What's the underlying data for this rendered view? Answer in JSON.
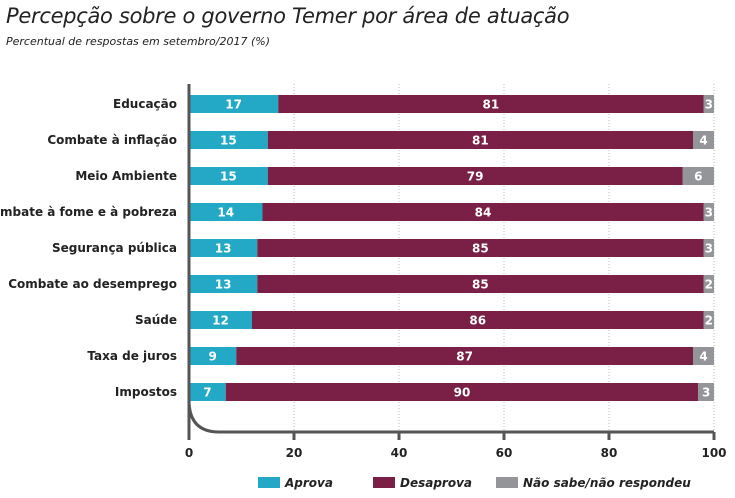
{
  "chart_data": {
    "type": "bar",
    "orientation": "horizontal",
    "stacked": true,
    "title": "Percepção sobre o governo Temer por área de atuação",
    "subtitle": "Percentual de respostas em setembro/2017 (%)",
    "categories": [
      "Educação",
      "Combate à inflação",
      "Meio Ambiente",
      "Combate à fome e à pobreza",
      "Segurança pública",
      "Combate ao desemprego",
      "Saúde",
      "Taxa de juros",
      "Impostos"
    ],
    "series": [
      {
        "name": "Aprova",
        "color": "#23a9c6",
        "values": [
          17,
          15,
          15,
          14,
          13,
          13,
          12,
          9,
          7
        ]
      },
      {
        "name": "Desaprova",
        "color": "#7a1f45",
        "values": [
          81,
          81,
          79,
          84,
          85,
          85,
          86,
          87,
          90
        ]
      },
      {
        "name": "Não sabe/não respondeu",
        "color": "#939598",
        "values": [
          3,
          4,
          6,
          3,
          3,
          2,
          2,
          4,
          3
        ]
      }
    ],
    "xlim": [
      0,
      100
    ],
    "xticks": [
      0,
      20,
      40,
      60,
      80,
      100
    ],
    "grid": true,
    "legend": "bottom"
  }
}
